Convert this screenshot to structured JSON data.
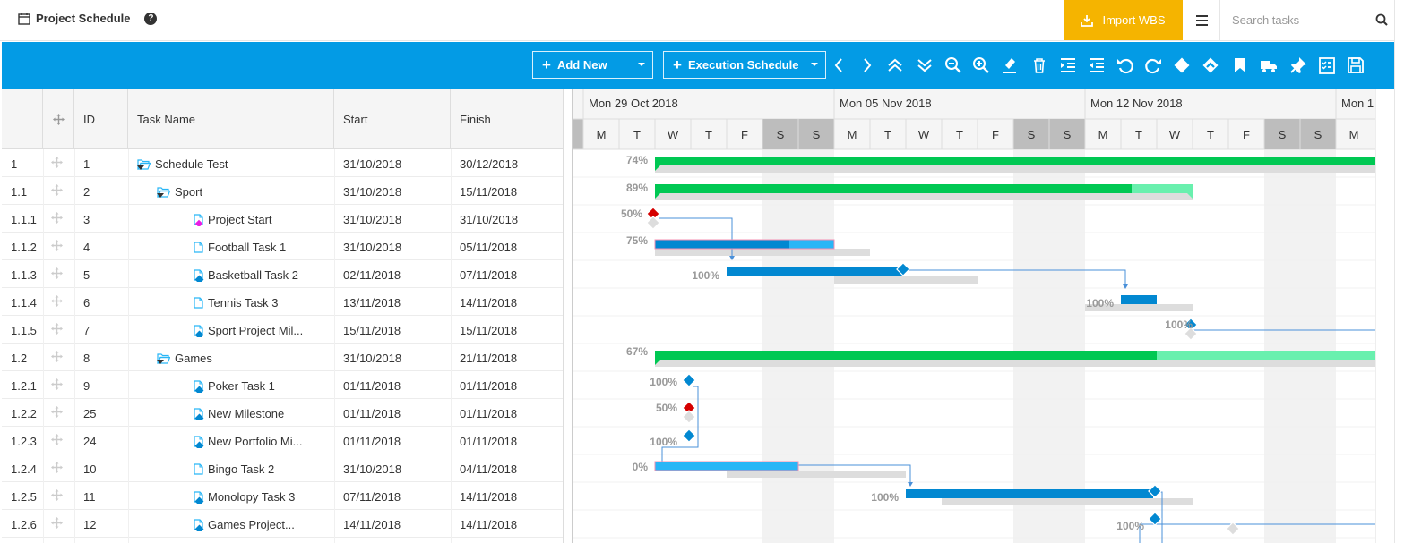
{
  "app": {
    "title": "Project Schedule",
    "help_icon": "help-circle-icon"
  },
  "header": {
    "import_label": "Import WBS",
    "search_placeholder": "Search tasks"
  },
  "toolbar": {
    "add_new_label": "Add New",
    "execution_label": "Execution Schedule",
    "icons": [
      "chevron-left-icon",
      "chevron-right-icon",
      "expand-all-icon",
      "collapse-all-icon",
      "zoom-out-icon",
      "zoom-in-icon",
      "highlight-icon",
      "delete-icon",
      "indent-icon",
      "outdent-icon",
      "undo-icon",
      "redo-icon",
      "milestone-icon",
      "critical-path-icon",
      "bookmark-icon",
      "truck-icon",
      "pin-icon",
      "task-list-icon",
      "save-icon"
    ]
  },
  "grid": {
    "columns": {
      "id": "ID",
      "name": "Task Name",
      "start": "Start",
      "finish": "Finish"
    },
    "rows": [
      {
        "wbs": "1",
        "id": "1",
        "name": "Schedule Test",
        "start": "31/10/2018",
        "finish": "30/12/2018",
        "level": 0,
        "type": "folder"
      },
      {
        "wbs": "1.1",
        "id": "2",
        "name": "Sport",
        "start": "31/10/2018",
        "finish": "15/11/2018",
        "level": 1,
        "type": "folder"
      },
      {
        "wbs": "1.1.1",
        "id": "3",
        "name": "Project Start",
        "start": "31/10/2018",
        "finish": "31/10/2018",
        "level": 2,
        "type": "milestone-pink"
      },
      {
        "wbs": "1.1.2",
        "id": "4",
        "name": "Football Task 1",
        "start": "31/10/2018",
        "finish": "05/11/2018",
        "level": 2,
        "type": "task"
      },
      {
        "wbs": "1.1.3",
        "id": "5",
        "name": "Basketball Task 2",
        "start": "02/11/2018",
        "finish": "07/11/2018",
        "level": 2,
        "type": "milestone-blue"
      },
      {
        "wbs": "1.1.4",
        "id": "6",
        "name": "Tennis Task 3",
        "start": "13/11/2018",
        "finish": "14/11/2018",
        "level": 2,
        "type": "task"
      },
      {
        "wbs": "1.1.5",
        "id": "7",
        "name": "Sport Project Mil...",
        "start": "15/11/2018",
        "finish": "15/11/2018",
        "level": 2,
        "type": "milestone-blue"
      },
      {
        "wbs": "1.2",
        "id": "8",
        "name": "Games",
        "start": "31/10/2018",
        "finish": "21/11/2018",
        "level": 1,
        "type": "folder"
      },
      {
        "wbs": "1.2.1",
        "id": "9",
        "name": "Poker Task 1",
        "start": "01/11/2018",
        "finish": "01/11/2018",
        "level": 2,
        "type": "milestone-blue"
      },
      {
        "wbs": "1.2.2",
        "id": "25",
        "name": "New Milestone",
        "start": "01/11/2018",
        "finish": "01/11/2018",
        "level": 2,
        "type": "milestone-blue"
      },
      {
        "wbs": "1.2.3",
        "id": "24",
        "name": "New Portfolio Mi...",
        "start": "01/11/2018",
        "finish": "01/11/2018",
        "level": 2,
        "type": "milestone-blue"
      },
      {
        "wbs": "1.2.4",
        "id": "10",
        "name": "Bingo Task 2",
        "start": "31/10/2018",
        "finish": "04/11/2018",
        "level": 2,
        "type": "task"
      },
      {
        "wbs": "1.2.5",
        "id": "11",
        "name": "Monolopy Task 3",
        "start": "07/11/2018",
        "finish": "14/11/2018",
        "level": 2,
        "type": "milestone-blue"
      },
      {
        "wbs": "1.2.6",
        "id": "12",
        "name": "Games Project...",
        "start": "14/11/2018",
        "finish": "14/11/2018",
        "level": 2,
        "type": "milestone-blue"
      }
    ]
  },
  "gantt": {
    "weeks": [
      "Mon 29 Oct 2018",
      "Mon 05 Nov 2018",
      "Mon 12 Nov 2018",
      "Mon 1"
    ],
    "day_letters": [
      "M",
      "T",
      "W",
      "T",
      "F",
      "S",
      "S",
      "M",
      "T",
      "W",
      "T",
      "F",
      "S",
      "S",
      "M",
      "T",
      "W",
      "T",
      "F",
      "S",
      "S",
      "M"
    ],
    "percents": [
      "74%",
      "89%",
      "50%",
      "75%",
      "100%",
      "100%",
      "100%",
      "67%",
      "100%",
      "50%",
      "100%",
      "0%",
      "100%",
      "100%"
    ],
    "colors": {
      "summary": "#00c853",
      "summary_light": "#69f0ae",
      "task": "#0288d1",
      "task_light": "#29b6f6",
      "baseline": "#dddddd",
      "milestone": "#0288d1",
      "milestone_red": "#d50000",
      "weekend": "#f2f2f2",
      "link": "#4a90d9"
    }
  }
}
